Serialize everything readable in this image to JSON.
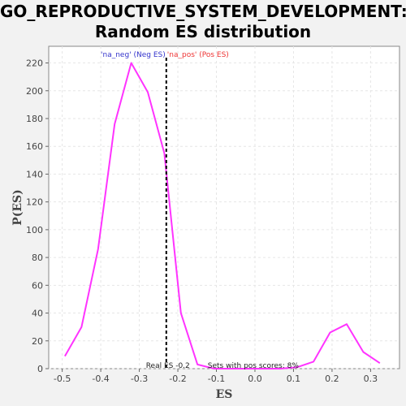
{
  "chart_data": {
    "type": "line",
    "title_line1": "GO_REPRODUCTIVE_SYSTEM_DEVELOPMENT:",
    "title_line2": "Random ES distribution",
    "xlabel": "ES",
    "ylabel": "P(ES)",
    "xlim": [
      -0.535,
      0.375
    ],
    "ylim": [
      0,
      232
    ],
    "x_ticks": [
      -0.5,
      -0.4,
      -0.3,
      -0.2,
      -0.1,
      0.0,
      0.1,
      0.2,
      0.3
    ],
    "x_tick_labels": [
      "-0.5",
      "-0.4",
      "-0.3",
      "-0.2",
      "-0.1",
      "0.0",
      "0.1",
      "0.2",
      "0.3"
    ],
    "y_ticks": [
      0,
      20,
      40,
      60,
      80,
      100,
      120,
      140,
      160,
      180,
      200,
      220
    ],
    "y_tick_labels": [
      "0",
      "20",
      "40",
      "60",
      "80",
      "100",
      "120",
      "140",
      "160",
      "180",
      "200",
      "220"
    ],
    "grid": true,
    "series": [
      {
        "color": "#ff33ff",
        "x": [
          -0.493,
          -0.45,
          -0.407,
          -0.364,
          -0.321,
          -0.278,
          -0.235,
          -0.192,
          -0.149,
          -0.106,
          -0.063,
          -0.02,
          0.023,
          0.066,
          0.109,
          0.152,
          0.195,
          0.238,
          0.281,
          0.324
        ],
        "y": [
          9,
          30,
          86,
          176,
          220,
          199,
          155,
          40,
          3,
          0,
          0,
          0,
          0,
          0,
          1,
          5,
          26,
          32,
          12,
          4
        ]
      }
    ],
    "real_es": -0.23,
    "real_es_color": "#000000",
    "annotations": {
      "neg_label": "'na_neg' (Neg ES)",
      "neg_color": "#3333cc",
      "pos_label": "'na_pos' (Pos ES)",
      "pos_color": "#ee3333",
      "real_es_label": "Real ES -0.2",
      "pos_scores_label": "Sets with pos scores: 8%"
    }
  }
}
